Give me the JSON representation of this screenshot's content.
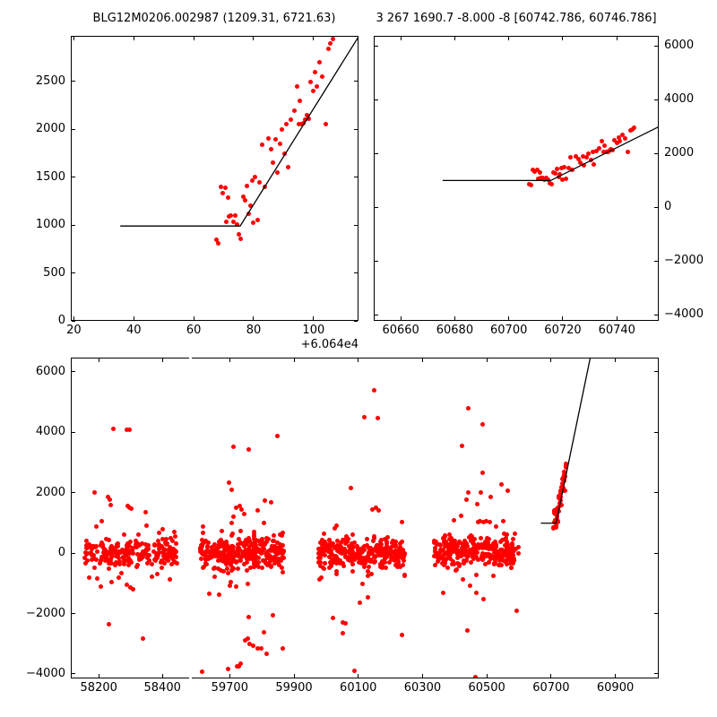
{
  "figure": {
    "background": "#ffffff"
  },
  "colors": {
    "marker": "#ff0000",
    "fit_line": "#000000",
    "axis": "#000000",
    "text": "#000000"
  },
  "event_points": [
    [
      60707.6,
      848
    ],
    [
      60708.1,
      812
    ],
    [
      60709.0,
      1402
    ],
    [
      60709.6,
      1330
    ],
    [
      60710.5,
      1390
    ],
    [
      60710.9,
      1038
    ],
    [
      60711.6,
      1288
    ],
    [
      60711.9,
      1092
    ],
    [
      60712.4,
      1100
    ],
    [
      60713.2,
      1032
    ],
    [
      60713.8,
      1095
    ],
    [
      60714.6,
      1010
    ],
    [
      60715.2,
      900
    ],
    [
      60715.7,
      858
    ],
    [
      60716.5,
      1300
    ],
    [
      60717.2,
      1258
    ],
    [
      60717.8,
      1405
    ],
    [
      60718.4,
      1120
    ],
    [
      60719.0,
      1205
    ],
    [
      60719.5,
      1465
    ],
    [
      60720.0,
      1020
    ],
    [
      60720.6,
      1500
    ],
    [
      60721.3,
      1055
    ],
    [
      60722.0,
      1450
    ],
    [
      60722.9,
      1840
    ],
    [
      60723.6,
      1395
    ],
    [
      60724.8,
      1900
    ],
    [
      60725.8,
      1795
    ],
    [
      60726.4,
      1650
    ],
    [
      60727.4,
      1890
    ],
    [
      60727.9,
      1550
    ],
    [
      60728.8,
      1850
    ],
    [
      60729.5,
      2000
    ],
    [
      60730.4,
      1745
    ],
    [
      60731.0,
      2050
    ],
    [
      60731.6,
      1600
    ],
    [
      60732.4,
      2100
    ],
    [
      60733.5,
      2190
    ],
    [
      60734.4,
      2450
    ],
    [
      60735.0,
      2050
    ],
    [
      60735.5,
      2295
    ],
    [
      60736.1,
      2050
    ],
    [
      60736.7,
      2060
    ],
    [
      60737.2,
      2100
    ],
    [
      60737.7,
      2150
    ],
    [
      60738.3,
      2105
    ],
    [
      60739.1,
      2495
    ],
    [
      60740.0,
      2395
    ],
    [
      60740.6,
      2600
    ],
    [
      60741.2,
      2450
    ],
    [
      60742.1,
      2695
    ],
    [
      60743.0,
      2550
    ],
    [
      60744.1,
      2050
    ],
    [
      60745.0,
      2840
    ],
    [
      60745.6,
      2900
    ],
    [
      60746.5,
      2940
    ]
  ],
  "chart_data": [
    {
      "id": "top_left",
      "type": "scatter",
      "title": "BLG12M0206.002987 (1209.31, 6721.63)",
      "xlim": [
        60659,
        60755
      ],
      "ylim": [
        0,
        2975
      ],
      "xticks": [
        60660,
        60680,
        60700,
        60720,
        60740
      ],
      "xtick_labels": [
        "20",
        "40",
        "60",
        "80",
        "100"
      ],
      "x_offset_label": "+6.064e4",
      "yticks": [
        0,
        500,
        1000,
        1500,
        2000,
        2500
      ],
      "ytick_labels": [
        "0",
        "500",
        "1000",
        "1500",
        "2000",
        "2500"
      ],
      "ytick_label_side": "left",
      "points": "event",
      "line": [
        [
          60675.5,
          990
        ],
        [
          60715.5,
          990
        ],
        [
          60755.5,
          2990
        ]
      ]
    },
    {
      "id": "top_right",
      "type": "scatter",
      "title": "3 267 1690.7 -8.000 -8 [60742.786, 60746.786]",
      "xlim": [
        60650,
        60755.5
      ],
      "ylim": [
        -4230,
        6370
      ],
      "xticks": [
        60660,
        60680,
        60700,
        60720,
        60740
      ],
      "xtick_labels": [
        "60660",
        "60680",
        "60700",
        "60720",
        "60740"
      ],
      "yticks": [
        -4000,
        -2000,
        0,
        2000,
        4000,
        6000
      ],
      "ytick_labels": [
        "−4000",
        "−2000",
        "0",
        "2000",
        "4000",
        "6000"
      ],
      "ytick_label_side": "right",
      "points": "event",
      "line": [
        [
          60675.5,
          990
        ],
        [
          60715.5,
          990
        ],
        [
          60755.5,
          2990
        ]
      ]
    },
    {
      "id": "bottom",
      "type": "scatter",
      "broken_x_axis": true,
      "ylim": [
        -4150,
        6470
      ],
      "yticks": [
        -4000,
        -2000,
        0,
        2000,
        4000,
        6000
      ],
      "ytick_labels": [
        "−4000",
        "−2000",
        "0",
        "2000",
        "4000",
        "6000"
      ],
      "ytick_label_side": "left",
      "segments": [
        {
          "id": "left",
          "xlim": [
            58112,
            58484
          ],
          "xticks": [
            58200,
            58400
          ],
          "xtick_labels": [
            "58200",
            "58400"
          ]
        },
        {
          "id": "right",
          "xlim": [
            59582,
            61035
          ],
          "xticks": [
            59700,
            59900,
            60100,
            60300,
            60500,
            60700,
            60900
          ],
          "xtick_labels": [
            "59700",
            "59900",
            "60100",
            "60300",
            "60500",
            "60700",
            "60900"
          ]
        }
      ],
      "points": "event",
      "line": [
        [
          60668,
          990
        ],
        [
          60715.5,
          990
        ],
        [
          60822,
          6470
        ]
      ],
      "season_clusters": [
        {
          "seed": 11,
          "n": 240,
          "x_range": [
            58148,
            58445
          ],
          "y_mean": 0,
          "y_sd": 230,
          "tail_frac": 0.12,
          "tail_sd": 520
        },
        {
          "seed": 22,
          "n": 330,
          "x_range": [
            59608,
            59868
          ],
          "y_mean": 0,
          "y_sd": 240,
          "tail_frac": 0.13,
          "tail_sd": 540
        },
        {
          "seed": 23,
          "n": 25,
          "x_range": [
            59774,
            59781
          ],
          "y_mean": 100,
          "y_sd": 330,
          "tail_frac": 0,
          "tail_sd": 0
        },
        {
          "seed": 33,
          "n": 330,
          "x_range": [
            59975,
            60245
          ],
          "y_mean": 0,
          "y_sd": 240,
          "tail_frac": 0.12,
          "tail_sd": 520
        },
        {
          "seed": 44,
          "n": 300,
          "x_range": [
            60335,
            60601
          ],
          "y_mean": 50,
          "y_sd": 250,
          "tail_frac": 0.12,
          "tail_sd": 540
        }
      ],
      "outlier_points": [
        [
          58247,
          4100
        ],
        [
          58287,
          4080
        ],
        [
          58296,
          4080
        ],
        [
          58186,
          2000
        ],
        [
          58230,
          1850
        ],
        [
          58234,
          1780
        ],
        [
          58238,
          1600
        ],
        [
          58291,
          1560
        ],
        [
          58296,
          1500
        ],
        [
          58301,
          1470
        ],
        [
          58210,
          1060
        ],
        [
          58351,
          910
        ],
        [
          58192,
          890
        ],
        [
          58262,
          -820
        ],
        [
          58240,
          -950
        ],
        [
          58288,
          -1060
        ],
        [
          58299,
          -1130
        ],
        [
          58309,
          -1210
        ],
        [
          58367,
          -790
        ],
        [
          58385,
          -700
        ],
        [
          58233,
          -2350
        ],
        [
          58339,
          -2830
        ],
        [
          59712,
          3510
        ],
        [
          59760,
          3440
        ],
        [
          59847,
          3870
        ],
        [
          59698,
          2340
        ],
        [
          59705,
          2090
        ],
        [
          59830,
          1680
        ],
        [
          59713,
          1200
        ],
        [
          59720,
          1500
        ],
        [
          59731,
          1560
        ],
        [
          59738,
          1430
        ],
        [
          59745,
          1300
        ],
        [
          59786,
          1400
        ],
        [
          59810,
          1750
        ],
        [
          59636,
          -1340
        ],
        [
          59668,
          -1390
        ],
        [
          59703,
          -970
        ],
        [
          59719,
          -1120
        ],
        [
          59757,
          -1020
        ],
        [
          59760,
          -2130
        ],
        [
          59834,
          -2050
        ],
        [
          59755,
          -2830
        ],
        [
          59806,
          -2610
        ],
        [
          59747,
          -2880
        ],
        [
          59762,
          -3000
        ],
        [
          59774,
          -3080
        ],
        [
          59786,
          -3150
        ],
        [
          59799,
          -3150
        ],
        [
          59814,
          -3320
        ],
        [
          59866,
          -3150
        ],
        [
          59615,
          -3930
        ],
        [
          59694,
          -3830
        ],
        [
          59722,
          -3740
        ],
        [
          59729,
          -3750
        ],
        [
          59735,
          -3660
        ],
        [
          60150,
          5400
        ],
        [
          60120,
          4500
        ],
        [
          60160,
          4480
        ],
        [
          60077,
          2150
        ],
        [
          60145,
          1430
        ],
        [
          60155,
          1500
        ],
        [
          60163,
          1400
        ],
        [
          60021,
          -2150
        ],
        [
          60051,
          -2300
        ],
        [
          60061,
          -2320
        ],
        [
          60053,
          -2650
        ],
        [
          60088,
          -3900
        ],
        [
          60236,
          -2720
        ],
        [
          60105,
          -1650
        ],
        [
          60130,
          -1480
        ],
        [
          60441,
          4800
        ],
        [
          60487,
          4250
        ],
        [
          60422,
          3550
        ],
        [
          60487,
          2660
        ],
        [
          60443,
          2020
        ],
        [
          60481,
          2020
        ],
        [
          60512,
          1850
        ],
        [
          60436,
          1770
        ],
        [
          60471,
          1620
        ],
        [
          60420,
          1235
        ],
        [
          60472,
          1040
        ],
        [
          60480,
          1045
        ],
        [
          60489,
          1040
        ],
        [
          60498,
          1050
        ],
        [
          60508,
          1040
        ],
        [
          60546,
          2265
        ],
        [
          60564,
          2070
        ],
        [
          60425,
          -875
        ],
        [
          60449,
          -1070
        ],
        [
          60468,
          -1310
        ],
        [
          60491,
          -1510
        ],
        [
          60594,
          -1900
        ],
        [
          60439,
          -2550
        ],
        [
          60464,
          -4100
        ]
      ]
    }
  ]
}
